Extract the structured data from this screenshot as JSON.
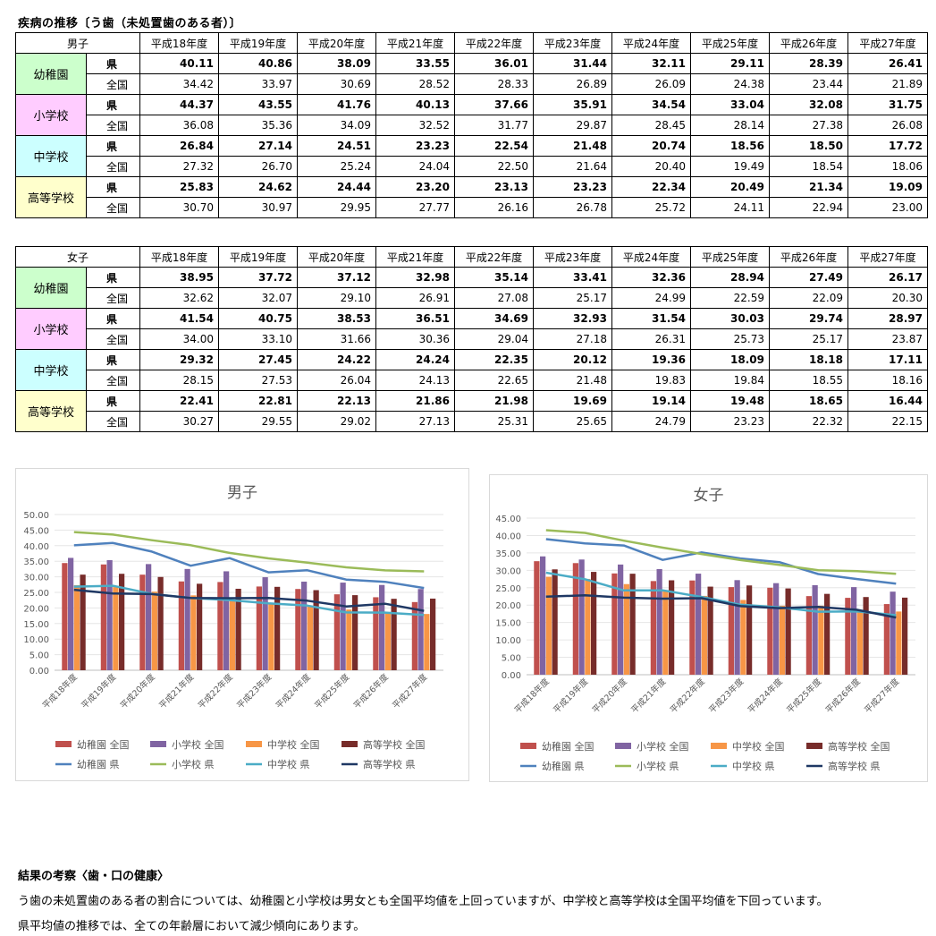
{
  "page_title": "疾病の推移〔う歯（未処置歯のある者）〕",
  "years": [
    "平成18年度",
    "平成19年度",
    "平成20年度",
    "平成21年度",
    "平成22年度",
    "平成23年度",
    "平成24年度",
    "平成25年度",
    "平成26年度",
    "平成27年度"
  ],
  "pref_label": "県",
  "national_label": "全国",
  "groups": [
    {
      "name": "幼稚園",
      "color": "#ccffcc"
    },
    {
      "name": "小学校",
      "color": "#ffccff"
    },
    {
      "name": "中学校",
      "color": "#ccffff"
    },
    {
      "name": "高等学校",
      "color": "#ffffcc"
    }
  ],
  "tables": [
    {
      "label": "男子",
      "rows": [
        {
          "pref": [
            "40.11",
            "40.86",
            "38.09",
            "33.55",
            "36.01",
            "31.44",
            "32.11",
            "29.11",
            "28.39",
            "26.41"
          ],
          "national": [
            "34.42",
            "33.97",
            "30.69",
            "28.52",
            "28.33",
            "26.89",
            "26.09",
            "24.38",
            "23.44",
            "21.89"
          ]
        },
        {
          "pref": [
            "44.37",
            "43.55",
            "41.76",
            "40.13",
            "37.66",
            "35.91",
            "34.54",
            "33.04",
            "32.08",
            "31.75"
          ],
          "national": [
            "36.08",
            "35.36",
            "34.09",
            "32.52",
            "31.77",
            "29.87",
            "28.45",
            "28.14",
            "27.38",
            "26.08"
          ]
        },
        {
          "pref": [
            "26.84",
            "27.14",
            "24.51",
            "23.23",
            "22.54",
            "21.48",
            "20.74",
            "18.56",
            "18.50",
            "17.72"
          ],
          "national": [
            "27.32",
            "26.70",
            "25.24",
            "24.04",
            "22.50",
            "21.64",
            "20.40",
            "19.49",
            "18.54",
            "18.06"
          ]
        },
        {
          "pref": [
            "25.83",
            "24.62",
            "24.44",
            "23.20",
            "23.13",
            "23.23",
            "22.34",
            "20.49",
            "21.34",
            "19.09"
          ],
          "national": [
            "30.70",
            "30.97",
            "29.95",
            "27.77",
            "26.16",
            "26.78",
            "25.72",
            "24.11",
            "22.94",
            "23.00"
          ]
        }
      ]
    },
    {
      "label": "女子",
      "rows": [
        {
          "pref": [
            "38.95",
            "37.72",
            "37.12",
            "32.98",
            "35.14",
            "33.41",
            "32.36",
            "28.94",
            "27.49",
            "26.17"
          ],
          "national": [
            "32.62",
            "32.07",
            "29.10",
            "26.91",
            "27.08",
            "25.17",
            "24.99",
            "22.59",
            "22.09",
            "20.30"
          ]
        },
        {
          "pref": [
            "41.54",
            "40.75",
            "38.53",
            "36.51",
            "34.69",
            "32.93",
            "31.54",
            "30.03",
            "29.74",
            "28.97"
          ],
          "national": [
            "34.00",
            "33.10",
            "31.66",
            "30.36",
            "29.04",
            "27.18",
            "26.31",
            "25.73",
            "25.17",
            "23.87"
          ]
        },
        {
          "pref": [
            "29.32",
            "27.45",
            "24.22",
            "24.24",
            "22.35",
            "20.12",
            "19.36",
            "18.09",
            "18.18",
            "17.11"
          ],
          "national": [
            "28.15",
            "27.53",
            "26.04",
            "24.13",
            "22.65",
            "21.48",
            "19.83",
            "19.84",
            "18.55",
            "18.16"
          ]
        },
        {
          "pref": [
            "22.41",
            "22.81",
            "22.13",
            "21.86",
            "21.98",
            "19.69",
            "19.14",
            "19.48",
            "18.65",
            "16.44"
          ],
          "national": [
            "30.27",
            "29.55",
            "29.02",
            "27.13",
            "25.31",
            "25.65",
            "24.79",
            "23.23",
            "22.32",
            "22.15"
          ]
        }
      ]
    }
  ],
  "chart_data": [
    {
      "type": "bar",
      "title": "男子",
      "categories": [
        "平成18年度",
        "平成19年度",
        "平成20年度",
        "平成21年度",
        "平成22年度",
        "平成23年度",
        "平成24年度",
        "平成25年度",
        "平成26年度",
        "平成27年度"
      ],
      "ylim": [
        0,
        50
      ],
      "yticks": [
        "0.00",
        "5.00",
        "10.00",
        "15.00",
        "20.00",
        "25.00",
        "30.00",
        "35.00",
        "40.00",
        "45.00",
        "50.00"
      ],
      "legend_position": "bottom",
      "bar_series": [
        {
          "name": "幼稚園 全国",
          "color": "#c0504d",
          "values": [
            34.42,
            33.97,
            30.69,
            28.52,
            28.33,
            26.89,
            26.09,
            24.38,
            23.44,
            21.89
          ]
        },
        {
          "name": "小学校 全国",
          "color": "#8064a2",
          "values": [
            36.08,
            35.36,
            34.09,
            32.52,
            31.77,
            29.87,
            28.45,
            28.14,
            27.38,
            26.08
          ]
        },
        {
          "name": "中学校 全国",
          "color": "#f79646",
          "values": [
            27.32,
            26.7,
            25.24,
            24.04,
            22.5,
            21.64,
            20.4,
            19.49,
            18.54,
            18.06
          ]
        },
        {
          "name": "高等学校 全国",
          "color": "#772c2a",
          "values": [
            30.7,
            30.97,
            29.95,
            27.77,
            26.16,
            26.78,
            25.72,
            24.11,
            22.94,
            23.0
          ]
        }
      ],
      "line_series": [
        {
          "name": "幼稚園 県",
          "color": "#4f81bd",
          "values": [
            40.11,
            40.86,
            38.09,
            33.55,
            36.01,
            31.44,
            32.11,
            29.11,
            28.39,
            26.41
          ]
        },
        {
          "name": "小学校 県",
          "color": "#9bbb59",
          "values": [
            44.37,
            43.55,
            41.76,
            40.13,
            37.66,
            35.91,
            34.54,
            33.04,
            32.08,
            31.75
          ]
        },
        {
          "name": "中学校 県",
          "color": "#4bacc6",
          "values": [
            26.84,
            27.14,
            24.51,
            23.23,
            22.54,
            21.48,
            20.74,
            18.56,
            18.5,
            17.72
          ]
        },
        {
          "name": "高等学校 県",
          "color": "#1f3864",
          "values": [
            25.83,
            24.62,
            24.44,
            23.2,
            23.13,
            23.23,
            22.34,
            20.49,
            21.34,
            19.09
          ]
        }
      ]
    },
    {
      "type": "bar",
      "title": "女子",
      "categories": [
        "平成18年度",
        "平成19年度",
        "平成20年度",
        "平成21年度",
        "平成22年度",
        "平成23年度",
        "平成24年度",
        "平成25年度",
        "平成26年度",
        "平成27年度"
      ],
      "ylim": [
        0,
        45
      ],
      "yticks": [
        "0.00",
        "5.00",
        "10.00",
        "15.00",
        "20.00",
        "25.00",
        "30.00",
        "35.00",
        "40.00",
        "45.00"
      ],
      "legend_position": "bottom",
      "bar_series": [
        {
          "name": "幼稚園 全国",
          "color": "#c0504d",
          "values": [
            32.62,
            32.07,
            29.1,
            26.91,
            27.08,
            25.17,
            24.99,
            22.59,
            22.09,
            20.3
          ]
        },
        {
          "name": "小学校 全国",
          "color": "#8064a2",
          "values": [
            34.0,
            33.1,
            31.66,
            30.36,
            29.04,
            27.18,
            26.31,
            25.73,
            25.17,
            23.87
          ]
        },
        {
          "name": "中学校 全国",
          "color": "#f79646",
          "values": [
            28.15,
            27.53,
            26.04,
            24.13,
            22.65,
            21.48,
            19.83,
            19.84,
            18.55,
            18.16
          ]
        },
        {
          "name": "高等学校 全国",
          "color": "#772c2a",
          "values": [
            30.27,
            29.55,
            29.02,
            27.13,
            25.31,
            25.65,
            24.79,
            23.23,
            22.32,
            22.15
          ]
        }
      ],
      "line_series": [
        {
          "name": "幼稚園 県",
          "color": "#4f81bd",
          "values": [
            38.95,
            37.72,
            37.12,
            32.98,
            35.14,
            33.41,
            32.36,
            28.94,
            27.49,
            26.17
          ]
        },
        {
          "name": "小学校 県",
          "color": "#9bbb59",
          "values": [
            41.54,
            40.75,
            38.53,
            36.51,
            34.69,
            32.93,
            31.54,
            30.03,
            29.74,
            28.97
          ]
        },
        {
          "name": "中学校 県",
          "color": "#4bacc6",
          "values": [
            29.32,
            27.45,
            24.22,
            24.24,
            22.35,
            20.12,
            19.36,
            18.09,
            18.18,
            17.11
          ]
        },
        {
          "name": "高等学校 県",
          "color": "#1f3864",
          "values": [
            22.41,
            22.81,
            22.13,
            21.86,
            21.98,
            19.69,
            19.14,
            19.48,
            18.65,
            16.44
          ]
        }
      ]
    }
  ],
  "conclusion": {
    "heading": "結果の考察〈歯・口の健康〉",
    "lines": [
      "う歯の未処置歯のある者の割合については、幼稚園と小学校は男女とも全国平均値を上回っていますが、中学校と高等学校は全国平均値を下回っています。",
      "県平均値の推移では、全ての年齢層において減少傾向にあります。"
    ]
  }
}
